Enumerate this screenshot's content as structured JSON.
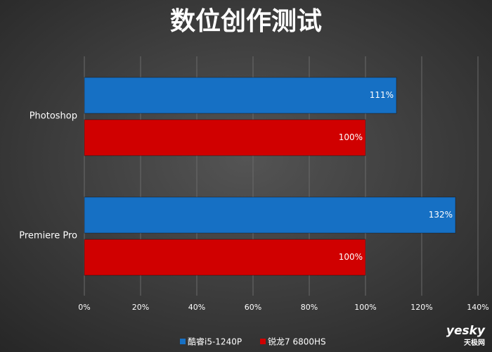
{
  "chart_data": {
    "type": "hbar",
    "title": "数位创作测试",
    "categories": [
      "Photoshop",
      "Premiere Pro"
    ],
    "series": [
      {
        "name": "酷睿i5-1240P",
        "color": "#1670c4",
        "values": [
          111,
          132
        ],
        "value_labels": [
          "111%",
          "132%"
        ]
      },
      {
        "name": "锐龙7 6800HS",
        "color": "#d00000",
        "values": [
          100,
          100
        ],
        "value_labels": [
          "100%",
          "100%"
        ]
      }
    ],
    "xlim": [
      0,
      140
    ],
    "xticks": [
      {
        "value": 0,
        "label": "0%"
      },
      {
        "value": 20,
        "label": "20%"
      },
      {
        "value": 40,
        "label": "40%"
      },
      {
        "value": 60,
        "label": "60%"
      },
      {
        "value": 80,
        "label": "80%"
      },
      {
        "value": 100,
        "label": "100%"
      },
      {
        "value": 120,
        "label": "120%"
      },
      {
        "value": 140,
        "label": "140%"
      }
    ],
    "grid": true,
    "legend": "bottom"
  },
  "watermark": {
    "brand": "yesky",
    "site": "天极网"
  }
}
